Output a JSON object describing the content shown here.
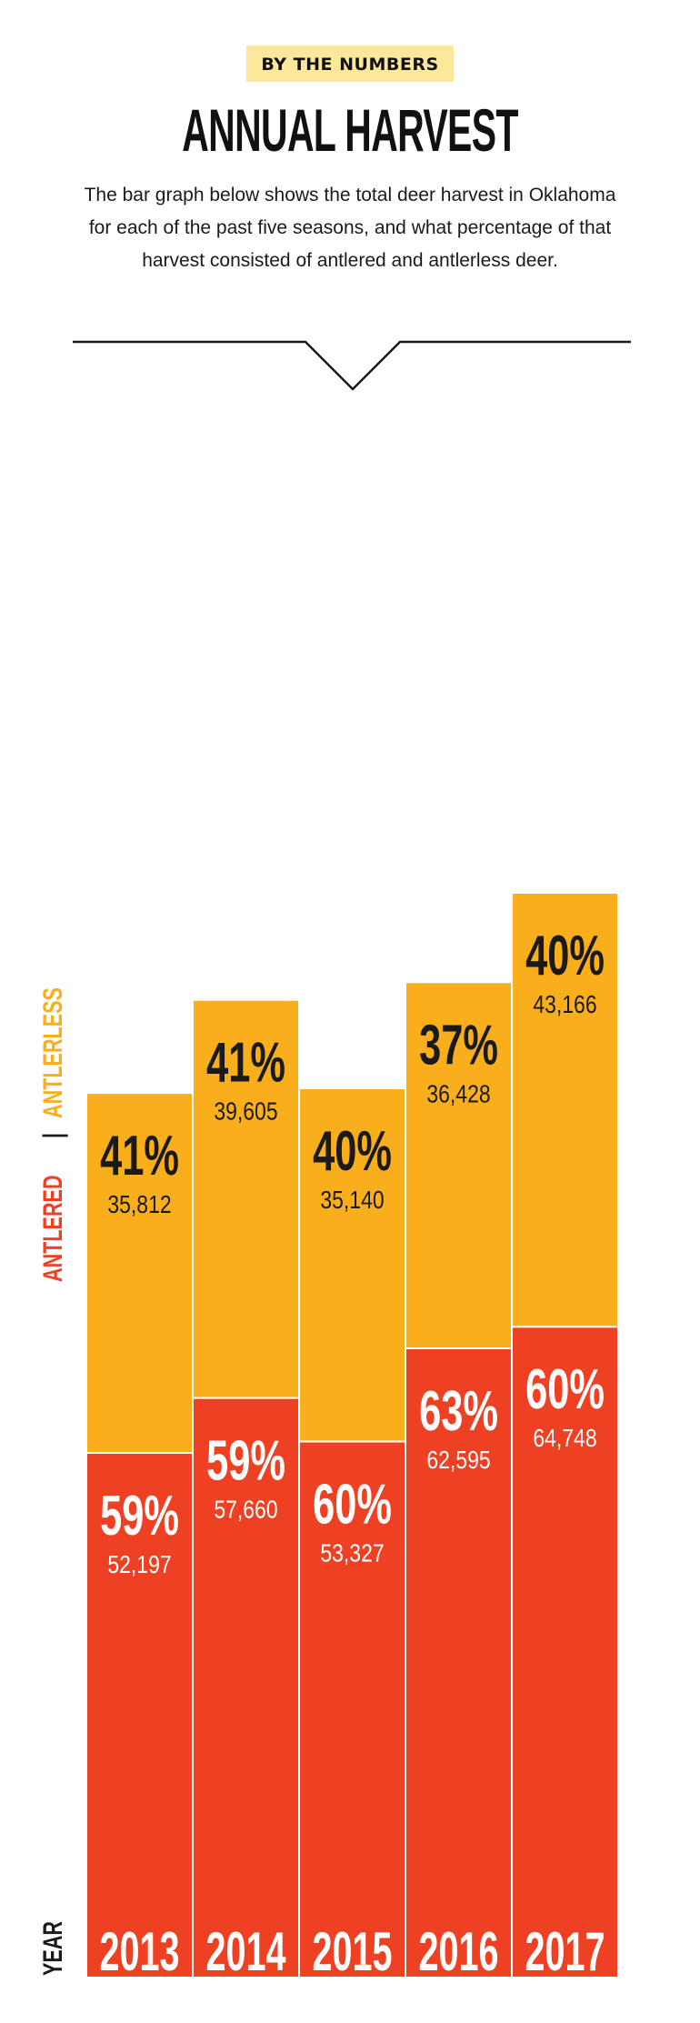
{
  "kicker": "BY THE NUMBERS",
  "title": "ANNUAL HARVEST",
  "description": "The bar graph below shows the total deer harvest in Oklahoma for each of the past five seasons, and what percentage of that harvest consisted of antlered and antlerless deer.",
  "side_label": {
    "antlered": "ANTLERED",
    "separator": "|",
    "antlerless": "ANTLERLESS"
  },
  "year_label": "YEAR",
  "colors": {
    "antlered": "#ee4023",
    "antlerless": "#f9ae1b",
    "kicker_bg": "#fbe89a",
    "dark_text": "#1a1a1a",
    "light_text": "#ffffff"
  },
  "chart_data": {
    "type": "bar",
    "stacked": true,
    "categories": [
      "2013",
      "2014",
      "2015",
      "2016",
      "2017"
    ],
    "series": [
      {
        "name": "ANTLERED",
        "values": [
          52197,
          57660,
          53327,
          62595,
          64748
        ],
        "value_labels": [
          "52,197",
          "57,660",
          "53,327",
          "62,595",
          "64,748"
        ],
        "percent_labels": [
          "59%",
          "59%",
          "60%",
          "63%",
          "60%"
        ]
      },
      {
        "name": "ANTLERLESS",
        "values": [
          35812,
          39605,
          35140,
          36428,
          43166
        ],
        "value_labels": [
          "35,812",
          "39,605",
          "35,140",
          "36,428",
          "43,166"
        ],
        "percent_labels": [
          "41%",
          "41%",
          "40%",
          "37%",
          "40%"
        ]
      }
    ],
    "xlabel": "YEAR",
    "ylim": [
      0,
      107914
    ],
    "grid": false,
    "legend": "left-vertical"
  }
}
